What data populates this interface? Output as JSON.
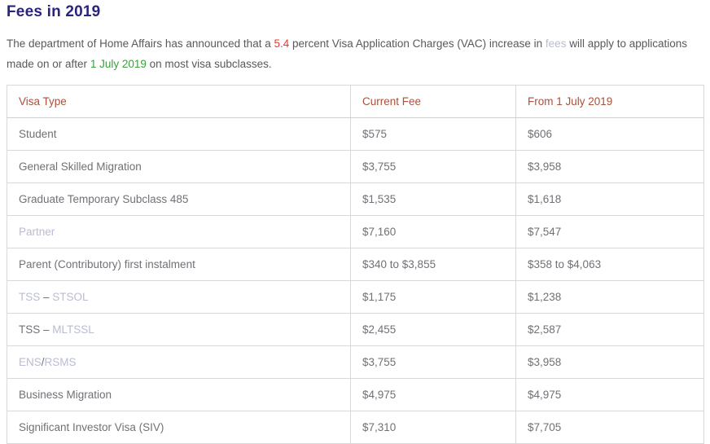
{
  "page": {
    "title": "Fees in 2019"
  },
  "intro": {
    "segments": [
      {
        "text": "The department of Home Affairs has announced that a ",
        "style": "normal"
      },
      {
        "text": "5.4",
        "style": "red"
      },
      {
        "text": " percent Visa Application Charges (VAC) increase in ",
        "style": "normal"
      },
      {
        "text": "fees",
        "style": "link"
      },
      {
        "text": " will apply to applications made on or after ",
        "style": "normal"
      },
      {
        "text": "1 July 2019",
        "style": "green"
      },
      {
        "text": " on most visa subclasses.",
        "style": "normal"
      }
    ]
  },
  "table": {
    "headers": [
      "Visa Type",
      "Current Fee",
      "From 1 July 2019"
    ],
    "rows": [
      {
        "type_segments": [
          {
            "text": "Student",
            "style": "normal"
          }
        ],
        "current_fee": "$575",
        "new_fee": "$606"
      },
      {
        "type_segments": [
          {
            "text": "General Skilled Migration",
            "style": "normal"
          }
        ],
        "current_fee": "$3,755",
        "new_fee": "$3,958"
      },
      {
        "type_segments": [
          {
            "text": "Graduate Temporary Subclass 485",
            "style": "normal"
          }
        ],
        "current_fee": "$1,535",
        "new_fee": "$1,618"
      },
      {
        "type_segments": [
          {
            "text": "Partner",
            "style": "link"
          }
        ],
        "current_fee": "$7,160",
        "new_fee": "$7,547"
      },
      {
        "type_segments": [
          {
            "text": "Parent (Contributory) first instalment",
            "style": "normal"
          }
        ],
        "current_fee": "$340 to $3,855",
        "new_fee": "$358 to $4,063"
      },
      {
        "type_segments": [
          {
            "text": "TSS",
            "style": "link"
          },
          {
            "text": " – ",
            "style": "normal"
          },
          {
            "text": "STSOL",
            "style": "link"
          }
        ],
        "current_fee": "$1,175",
        "new_fee": "$1,238"
      },
      {
        "type_segments": [
          {
            "text": "TSS",
            "style": "normal"
          },
          {
            "text": " – ",
            "style": "normal"
          },
          {
            "text": "MLTSSL",
            "style": "link"
          }
        ],
        "current_fee": "$2,455",
        "new_fee": "$2,587"
      },
      {
        "type_segments": [
          {
            "text": "ENS",
            "style": "link"
          },
          {
            "text": "/",
            "style": "normal"
          },
          {
            "text": "RSMS",
            "style": "link"
          }
        ],
        "current_fee": "$3,755",
        "new_fee": "$3,958"
      },
      {
        "type_segments": [
          {
            "text": "Business Migration",
            "style": "normal"
          }
        ],
        "current_fee": "$4,975",
        "new_fee": "$4,975"
      },
      {
        "type_segments": [
          {
            "text": "Significant Investor Visa (SIV)",
            "style": "normal"
          }
        ],
        "current_fee": "$7,310",
        "new_fee": "$7,705"
      }
    ]
  },
  "colors": {
    "title": "#29247d",
    "table_header_text": "#a9513b",
    "body_text": "#58595c",
    "cell_text": "#707176",
    "link": "#b9bcd2",
    "highlight_red": "#e23b32",
    "highlight_green": "#3aa03c",
    "table_border": "#d8d8d8"
  }
}
